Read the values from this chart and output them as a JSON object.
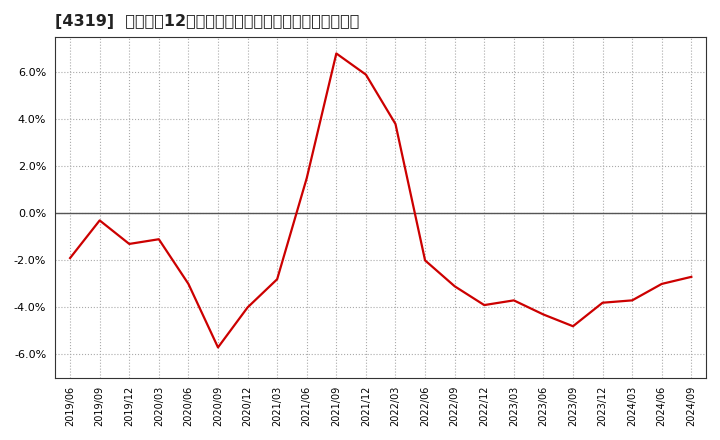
{
  "title": "[4319]  売上高の12か月移動合計の対前年同期増減率の推移",
  "title_fontsize": 11.5,
  "line_color": "#cc0000",
  "background_color": "#ffffff",
  "grid_color": "#aaaaaa",
  "zero_line_color": "#555555",
  "border_color": "#333333",
  "ylim": [
    -0.07,
    0.075
  ],
  "yticks": [
    -0.06,
    -0.04,
    -0.02,
    0.0,
    0.02,
    0.04,
    0.06
  ],
  "dates": [
    "2019/06",
    "2019/09",
    "2019/12",
    "2020/03",
    "2020/06",
    "2020/09",
    "2020/12",
    "2021/03",
    "2021/06",
    "2021/09",
    "2021/12",
    "2022/03",
    "2022/06",
    "2022/09",
    "2022/12",
    "2023/03",
    "2023/06",
    "2023/09",
    "2023/12",
    "2024/03",
    "2024/06",
    "2024/09"
  ],
  "values": [
    -0.019,
    -0.003,
    -0.013,
    -0.011,
    -0.03,
    -0.057,
    -0.04,
    -0.028,
    0.015,
    0.068,
    0.059,
    0.038,
    -0.02,
    -0.031,
    -0.039,
    -0.037,
    -0.043,
    -0.048,
    -0.038,
    -0.037,
    -0.03,
    -0.027
  ]
}
